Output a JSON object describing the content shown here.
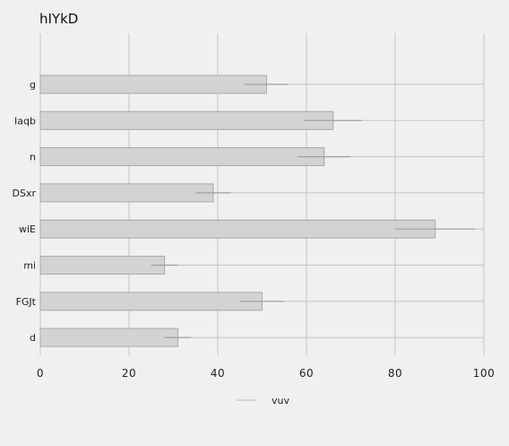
{
  "chart_data": {
    "type": "bar",
    "orientation": "horizontal",
    "title": "hIYkD",
    "xlabel": "",
    "ylabel": "",
    "categories": [
      "g",
      "Iaqb",
      "n",
      "DSxr",
      "wiE",
      "mi",
      "FGJt",
      "d"
    ],
    "series": [
      {
        "name": "vuv",
        "values": [
          51,
          66,
          64,
          39,
          89,
          28,
          50,
          31
        ],
        "error": [
          5,
          6.5,
          6,
          4,
          9,
          3,
          5,
          3
        ]
      }
    ],
    "xlim": [
      0,
      100
    ],
    "xticks": [
      "0",
      "20",
      "40",
      "60",
      "80",
      "100"
    ],
    "grid": true,
    "legend_position": "bottom-center",
    "colors": {
      "background": "#f0f0f0",
      "bar_fill": "#d3d3d3",
      "bar_stroke": "#a8a8a8",
      "grid": "#c4c4c4",
      "error_bar": "#a0a0a0"
    }
  }
}
